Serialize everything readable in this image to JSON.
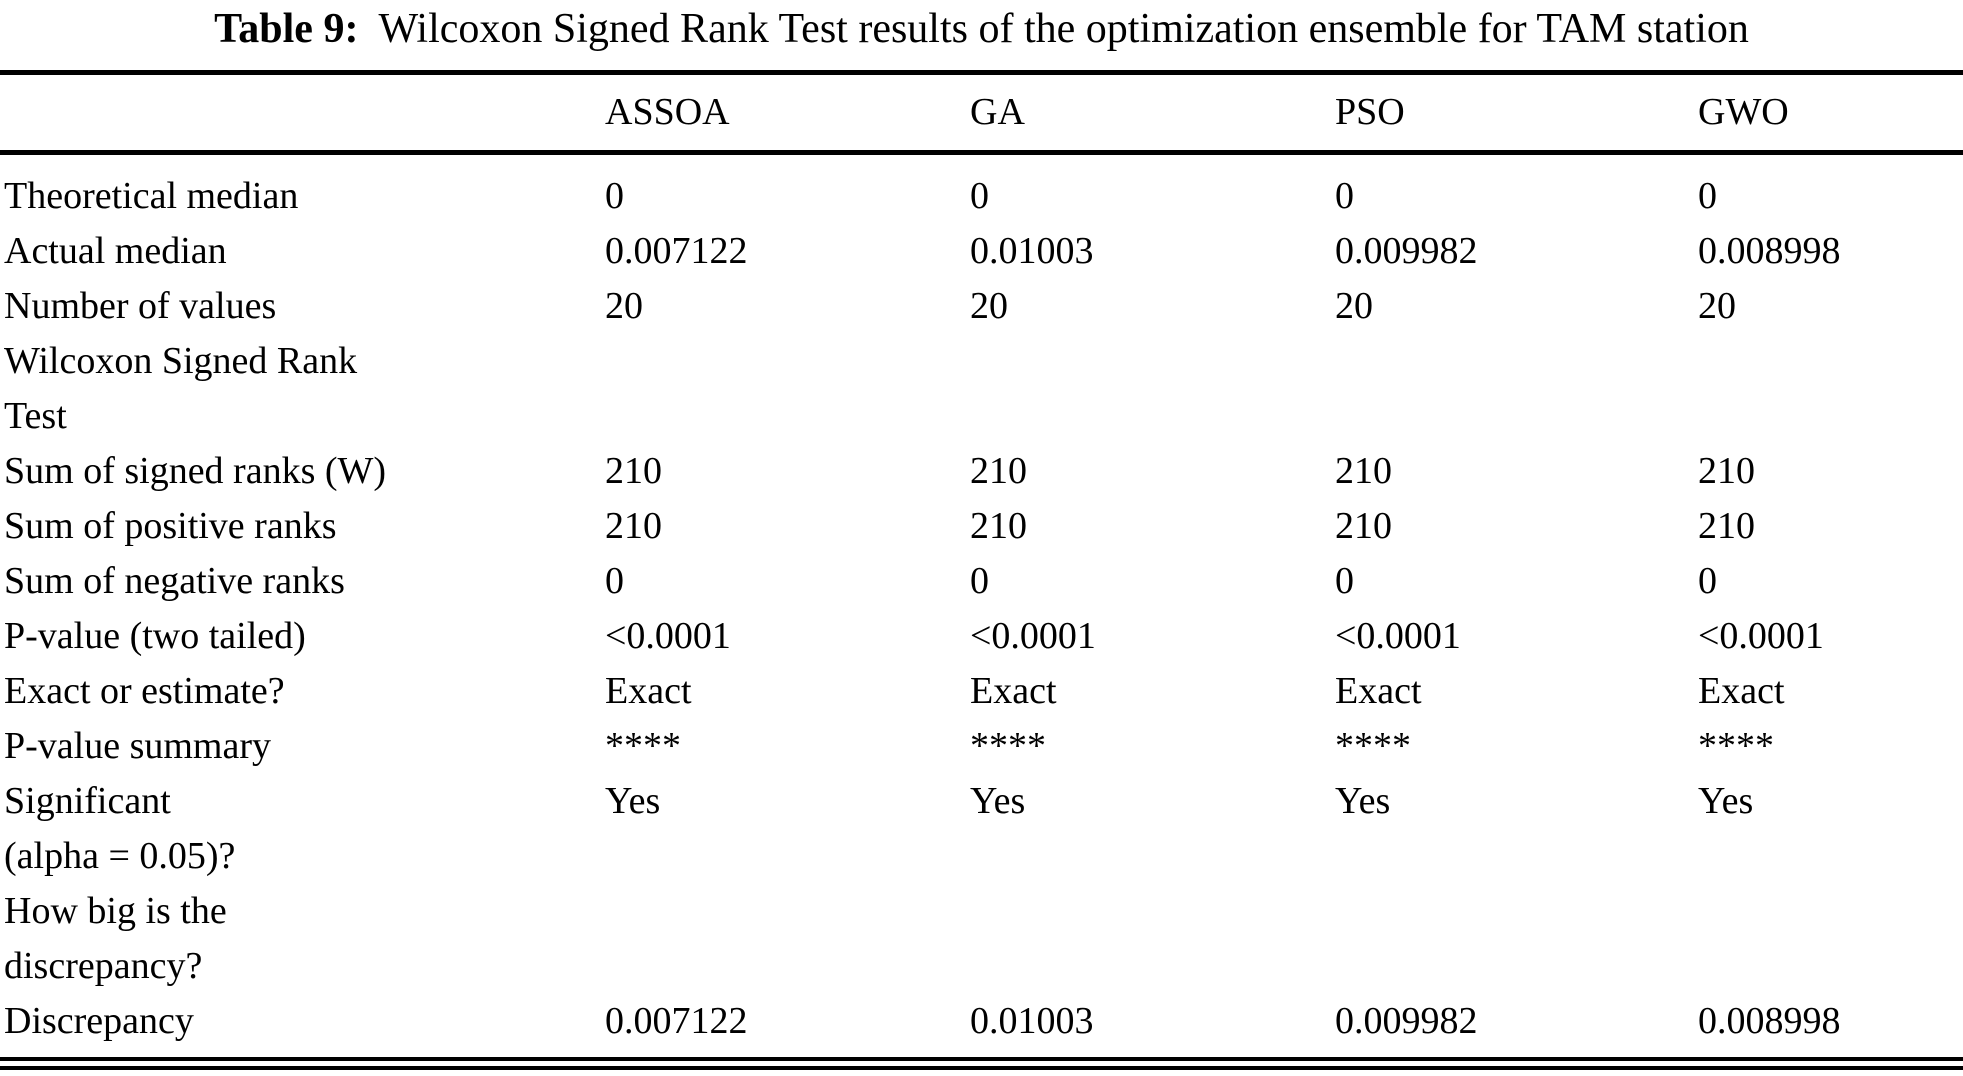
{
  "caption": {
    "label": "Table 9:",
    "text": "Wilcoxon Signed Rank Test results of the optimization ensemble for TAM station"
  },
  "table": {
    "columns": [
      "",
      "ASSOA",
      "GA",
      "PSO",
      "GWO"
    ],
    "rows": [
      {
        "label": "Theoretical median",
        "values": [
          "0",
          "0",
          "0",
          "0"
        ]
      },
      {
        "label": "Actual median",
        "values": [
          "0.007122",
          "0.01003",
          "0.009982",
          "0.008998"
        ]
      },
      {
        "label": "Number of values",
        "values": [
          "20",
          "20",
          "20",
          "20"
        ]
      },
      {
        "label": "Wilcoxon Signed Rank\nTest",
        "values": [
          "",
          "",
          "",
          ""
        ]
      },
      {
        "label": "Sum of signed ranks (W)",
        "values": [
          "210",
          "210",
          "210",
          "210"
        ]
      },
      {
        "label": "Sum of positive ranks",
        "values": [
          "210",
          "210",
          "210",
          "210"
        ]
      },
      {
        "label": "Sum of negative ranks",
        "values": [
          "0",
          "0",
          "0",
          "0"
        ]
      },
      {
        "label": "P-value (two tailed)",
        "values": [
          "<0.0001",
          "<0.0001",
          "<0.0001",
          "<0.0001"
        ]
      },
      {
        "label": "Exact or estimate?",
        "values": [
          "Exact",
          "Exact",
          "Exact",
          "Exact"
        ]
      },
      {
        "label": "P-value summary",
        "values": [
          "****",
          "****",
          "****",
          "****"
        ]
      },
      {
        "label": "Significant\n(alpha = 0.05)?",
        "values": [
          "Yes",
          "Yes",
          "Yes",
          "Yes"
        ]
      },
      {
        "label": "How big is the\ndiscrepancy?",
        "values": [
          "",
          "",
          "",
          ""
        ]
      },
      {
        "label": "Discrepancy",
        "values": [
          "0.007122",
          "0.01003",
          "0.009982",
          "0.008998"
        ]
      }
    ]
  },
  "colors": {
    "text": "#000000",
    "background": "#ffffff",
    "rule": "#000000"
  }
}
